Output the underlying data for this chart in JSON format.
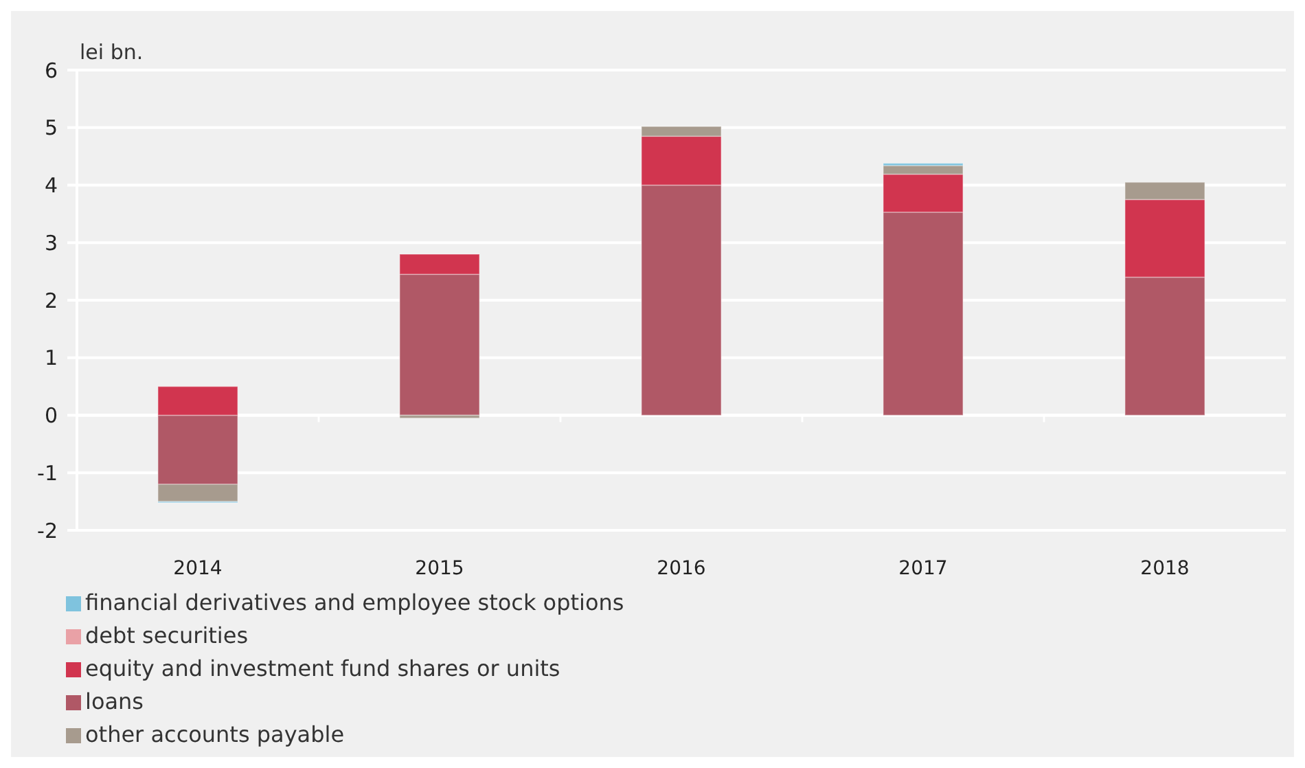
{
  "chart_data": {
    "type": "bar",
    "stacked": true,
    "ylabel": "lei bn.",
    "categories": [
      "2014",
      "2015",
      "2016",
      "2017",
      "2018"
    ],
    "series": [
      {
        "name": "loans",
        "color": "#b05866",
        "values": [
          -1.2,
          2.45,
          4.0,
          3.53,
          2.4
        ]
      },
      {
        "name": "equity and investment fund shares or units",
        "color": "#d1354f",
        "values": [
          0.5,
          0.35,
          0.85,
          0.66,
          1.35
        ]
      },
      {
        "name": "other accounts payable",
        "color": "#a79b8e",
        "values": [
          -0.3,
          -0.05,
          0.17,
          0.15,
          0.3
        ]
      },
      {
        "name": "financial derivatives and employee stock options",
        "color": "#7fc3de",
        "values": [
          -0.02,
          0,
          0,
          0.04,
          0
        ]
      },
      {
        "name": "debt securities",
        "color": "#e9a1a6",
        "values": [
          0,
          0,
          0,
          0,
          0
        ]
      }
    ],
    "ylim": [
      -2,
      6
    ],
    "yticks": [
      -2,
      -1,
      0,
      1,
      2,
      3,
      4,
      5,
      6
    ],
    "grid": "y",
    "legend": "bottom left"
  }
}
